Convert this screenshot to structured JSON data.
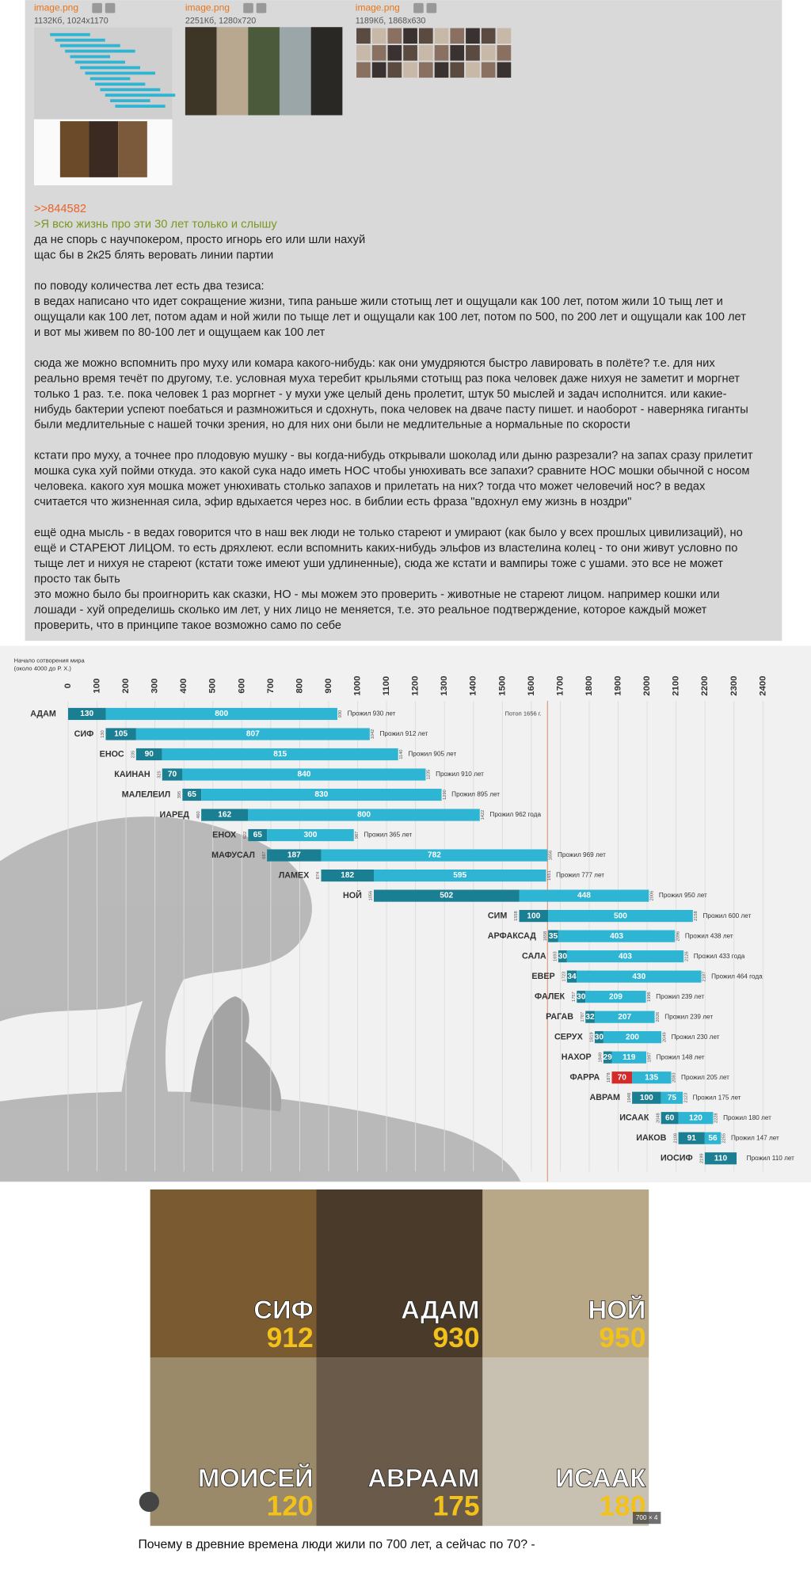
{
  "files": [
    {
      "name": "image.png",
      "info": "1132Кб, 1024x1170"
    },
    {
      "name": "image.png",
      "info": "2251Кб, 1280x720"
    },
    {
      "name": "image.png",
      "info": "1189Кб, 1868x630"
    }
  ],
  "post": {
    "reply_link": ">>844582",
    "quote": ">Я всю жизнь про эти 30 лет только и слышу",
    "paragraphs": [
      [
        "да не спорь с научпокером, просто игнорь его или шли нахуй",
        "щас бы в 2к25 блять веровать линии партии"
      ],
      [
        "по поводу количества лет есть два тезиса:",
        "в ведах написано что идет сокращение жизни, типа раньше жили стотыщ лет и ощущали как 100 лет, потом жили 10 тыщ лет и",
        "ощущали как 100 лет, потом адам и ной жили по тыще лет и ощущали как 100 лет, потом по 500, по 200 лет и ощущали как 100 лет",
        "и вот мы живем по 80-100 лет и ощущаем как 100 лет"
      ],
      [
        "сюда же можно вспомнить про муху или комара какого-нибудь: как они умудряются быстро лавировать в полёте? т.е. для них",
        "реально время течёт по другому, т.е. условная муха теребит крыльями стотыщ раз пока человек даже нихуя не заметит и моргнет",
        "только 1 раз. т.е. пока человек 1 раз моргнет - у мухи уже целый день пролетит, штук 50 мыслей и задач исполнится. или какие-",
        "нибудь бактерии успеют поебаться и размножиться и сдохнуть, пока человек на дваче пасту пишет. и наоборот - наверняка гиганты",
        "были медлительные с нашей точки зрения, но для них они были не медлительные а нормальные по скорости"
      ],
      [
        "кстати про муху, а точнее про плодовую мушку - вы когда-нибудь открывали шоколад или дыню разрезали? на запах сразу прилетит",
        "мошка сука хуй пойми откуда. это какой сука надо иметь НОС чтобы унюхивать все запахи? сравните НОС мошки обычной с носом",
        "человека. какого хуя мошка может унюхивать столько запахов и прилетать на них? тогда что может человечий нос? в ведах",
        "считается что жизненная сила, эфир вдыхается через нос. в библии есть фраза \"вдохнул ему жизнь в ноздри\""
      ],
      [
        "ещё одна мысль - в ведах говорится что в наш век люди не только стареют и умирают (как было у всех прошлых цивилизаций), но",
        "ещё и СТАРЕЮТ ЛИЦОМ. то есть дряхлеют. если вспомнить каких-нибудь эльфов из властелина колец - то они живут условно по",
        "тыще лет и нихуя не стареют (кстати тоже имеют уши удлиненные), сюда же кстати и вампиры тоже с ушами. это все не может",
        "просто так быть",
        "это можно было бы проигнорить как сказки, НО - мы можем это проверить - животные не стареют лицом. например кошки или",
        "лошади - хуй определишь сколько им лет, у них лицо не меняется, т.е. это реальное подтверждение, которое каждый может",
        "проверить, что в принципе такое возможно само по себе"
      ]
    ]
  },
  "chart": {
    "type": "timeline",
    "origin_label": [
      "Начало сотворения мира",
      "(около 4000 до Р. Х.)"
    ],
    "xlim": [
      0,
      2400
    ],
    "xticks": [
      0,
      100,
      200,
      300,
      400,
      500,
      600,
      700,
      800,
      900,
      1000,
      1100,
      1200,
      1300,
      1400,
      1500,
      1600,
      1700,
      1800,
      1900,
      2000,
      2100,
      2200,
      2300,
      2400
    ],
    "dark_color": "#1b7f94",
    "light_color": "#2db5d3",
    "flood": {
      "year": 1656,
      "label": "Потоп 1656 г."
    },
    "rows": [
      {
        "name": "АДАМ",
        "start": 0,
        "dark": 130,
        "light": 800,
        "end": 930,
        "lived": "Прожил 930 лет"
      },
      {
        "name": "СИФ",
        "start": 130,
        "dark": 105,
        "light": 807,
        "end": 1042,
        "lived": "Прожил 912 лет"
      },
      {
        "name": "ЕНОС",
        "start": 235,
        "dark": 90,
        "light": 815,
        "end": 1140,
        "lived": "Прожил 905 лет"
      },
      {
        "name": "КАИНАН",
        "start": 325,
        "dark": 70,
        "light": 840,
        "end": 1235,
        "lived": "Прожил 910 лет"
      },
      {
        "name": "МАЛЕЛЕИЛ",
        "start": 395,
        "dark": 65,
        "light": 830,
        "end": 1290,
        "lived": "Прожил 895 лет"
      },
      {
        "name": "ИАРЕД",
        "start": 460,
        "dark": 162,
        "light": 800,
        "end": 1422,
        "lived": "Прожил 962 года"
      },
      {
        "name": "ЕНОХ",
        "start": 622,
        "dark": 65,
        "light": 300,
        "end": 987,
        "lived": "Прожил 365 лет"
      },
      {
        "name": "МАФУСАЛ",
        "start": 687,
        "dark": 187,
        "light": 782,
        "end": 1656,
        "lived": "Прожил 969 лет"
      },
      {
        "name": "ЛАМЕХ",
        "start": 874,
        "dark": 182,
        "light": 595,
        "end": 1651,
        "lived": "Прожил 777 лет"
      },
      {
        "name": "НОЙ",
        "start": 1056,
        "dark": 502,
        "light": 448,
        "end": 2006,
        "lived": "Прожил 950 лет"
      },
      {
        "name": "СИМ",
        "start": 1558,
        "dark": 100,
        "light": 500,
        "end": 2158,
        "lived": "Прожил 600 лет"
      },
      {
        "name": "АРФАКСАД",
        "start": 1658,
        "dark": 35,
        "light": 403,
        "end": 2096,
        "lived": "Прожил 438 лет"
      },
      {
        "name": "САЛА",
        "start": 1693,
        "dark": 30,
        "light": 403,
        "end": 2126,
        "lived": "Прожил 433 года"
      },
      {
        "name": "ЕВЕР",
        "start": 1723,
        "dark": 34,
        "light": 430,
        "end": 2187,
        "lived": "Прожил 464 года"
      },
      {
        "name": "ФАЛЕК",
        "start": 1757,
        "dark": 30,
        "light": 209,
        "end": 1996,
        "lived": "Прожил 239 лет"
      },
      {
        "name": "РАГАВ",
        "start": 1787,
        "dark": 32,
        "light": 207,
        "end": 2026,
        "lived": "Прожил 239 лет"
      },
      {
        "name": "СЕРУХ",
        "start": 1819,
        "dark": 30,
        "light": 200,
        "end": 2049,
        "lived": "Прожил 230 лет"
      },
      {
        "name": "НАХОР",
        "start": 1849,
        "dark": 29,
        "light": 119,
        "end": 1997,
        "lived": "Прожил 148 лет"
      },
      {
        "name": "ФАРРА",
        "start": 1878,
        "dark": 70,
        "light": 135,
        "end": 2083,
        "lived": "Прожил 205 лет",
        "dark_color": "#d42a2a"
      },
      {
        "name": "АВРАМ",
        "start": 1948,
        "dark": 100,
        "light": 75,
        "end": 2123,
        "lived": "Прожил 175 лет"
      },
      {
        "name": "ИСААК",
        "start": 2048,
        "dark": 60,
        "light": 120,
        "end": 2228,
        "lived": "Прожил 180 лет"
      },
      {
        "name": "ИАКОВ",
        "start": 2108,
        "dark": 91,
        "light": 56,
        "end": 2255,
        "lived": "Прожил 147 лет"
      },
      {
        "name": "ИОСИФ",
        "start": 2199,
        "dark": 110,
        "lived": "Прожил 110 лет"
      }
    ]
  },
  "result": {
    "panels": [
      {
        "name": "СИФ",
        "age": "912"
      },
      {
        "name": "АДАМ",
        "age": "930"
      },
      {
        "name": "НОЙ",
        "age": "950"
      },
      {
        "name": "МОИСЕЙ",
        "age": "120"
      },
      {
        "name": "АВРААМ",
        "age": "175"
      },
      {
        "name": "ИСААК",
        "age": "180"
      }
    ],
    "size_badge": "700 × 4",
    "caption": "Почему в древние времена люди жили по 700 лет, а сейчас по 70? -"
  }
}
